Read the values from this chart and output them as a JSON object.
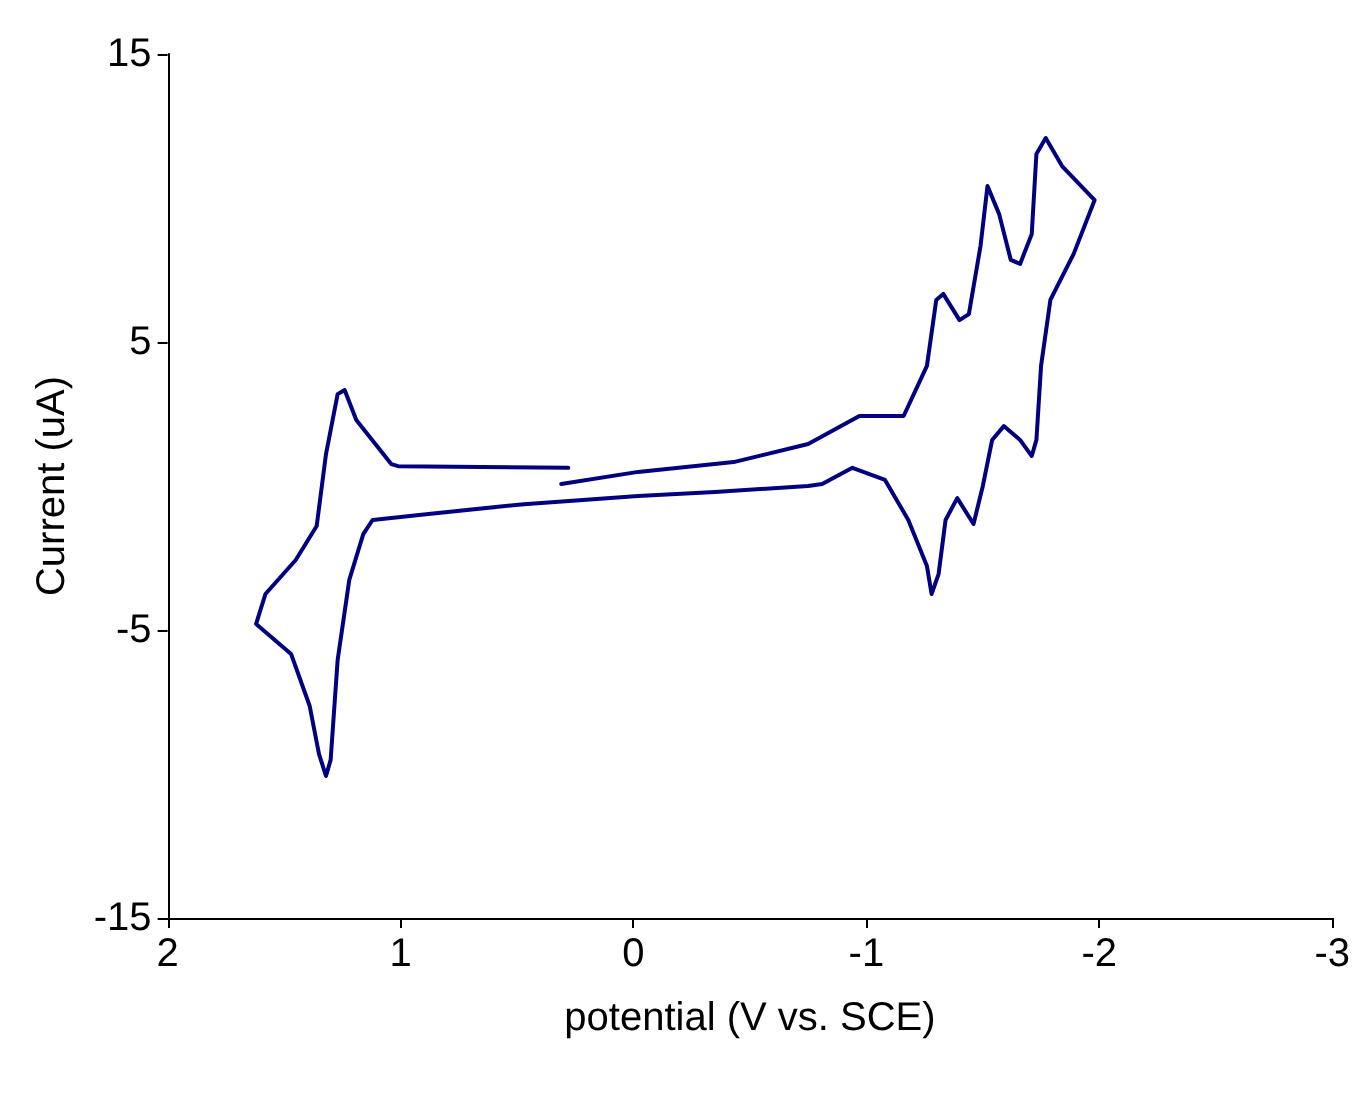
{
  "chart_data": {
    "type": "line",
    "xlabel": "potential (V vs. SCE)",
    "ylabel": "Current (uA)",
    "xlim": [
      2,
      -3
    ],
    "xticks": [
      2,
      1,
      0,
      -1,
      -2,
      -3
    ],
    "ylim": [
      -15,
      15
    ],
    "yticks": [
      -15,
      -5,
      5,
      15
    ],
    "marker": "none",
    "line_style": "solid",
    "series": [
      {
        "color": "#000080",
        "x": [
          0.31,
          -0.02,
          -0.43,
          -0.75,
          -0.97,
          -1.16,
          -1.26,
          -1.3,
          -1.33,
          -1.4,
          -1.44,
          -1.49,
          -1.52,
          -1.57,
          -1.62,
          -1.66,
          -1.71,
          -1.73,
          -1.77,
          -1.84,
          -1.98,
          -1.89,
          -1.79,
          -1.75,
          -1.73,
          -1.71,
          -1.66,
          -1.59,
          -1.54,
          -1.5,
          -1.46,
          -1.39,
          -1.34,
          -1.31,
          -1.28,
          -1.26,
          -1.18,
          -1.08,
          -0.94,
          -0.81,
          -0.75,
          -0.35,
          -0.02,
          0.47,
          0.88,
          1.12,
          1.16,
          1.22,
          1.27,
          1.3,
          1.32,
          1.35,
          1.39,
          1.47,
          1.62,
          1.58,
          1.45,
          1.36,
          1.32,
          1.27,
          1.24,
          1.19,
          1.04,
          1.01,
          0.28
        ],
        "values": [
          0.07,
          0.49,
          0.83,
          1.46,
          2.43,
          2.43,
          4.17,
          6.46,
          6.67,
          5.76,
          5.97,
          8.33,
          10.42,
          9.44,
          7.85,
          7.71,
          8.75,
          11.53,
          12.08,
          11.11,
          9.93,
          8.06,
          6.46,
          4.17,
          1.6,
          1.04,
          1.6,
          2.08,
          1.6,
          0,
          -1.32,
          -0.42,
          -1.18,
          -3.06,
          -3.75,
          -2.78,
          -1.18,
          0.21,
          0.63,
          0.07,
          0,
          -0.21,
          -0.35,
          -0.63,
          -0.97,
          -1.18,
          -1.67,
          -3.26,
          -6.04,
          -9.51,
          -10.07,
          -9.31,
          -7.64,
          -5.83,
          -4.79,
          -3.75,
          -2.57,
          -1.39,
          1.11,
          3.19,
          3.33,
          2.29,
          0.76,
          0.69,
          0.63
        ]
      }
    ]
  }
}
